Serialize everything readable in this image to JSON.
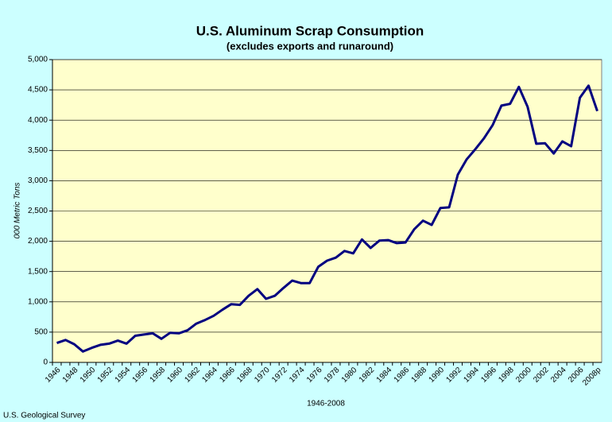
{
  "chart_data": {
    "type": "line",
    "title": "U.S. Aluminum Scrap Consumption",
    "subtitle": "(excludes exports and runaround)",
    "y_label": "000 Metric Tons",
    "x_label": "1946-2008",
    "source": "U.S. Geological Survey",
    "categories": [
      "1946",
      null,
      "1948",
      null,
      "1950",
      null,
      "1952",
      null,
      "1954",
      null,
      "1956",
      null,
      "1958",
      null,
      "1960",
      null,
      "1962",
      null,
      "1964",
      null,
      "1966",
      null,
      "1968",
      null,
      "1970",
      null,
      "1972",
      null,
      "1974",
      null,
      "1976",
      null,
      "1978",
      null,
      "1980",
      null,
      "1982",
      null,
      "1984",
      null,
      "1986",
      null,
      "1988",
      null,
      "1990",
      null,
      "1992",
      null,
      "1994",
      null,
      "1996",
      null,
      "1998",
      null,
      "2000",
      null,
      "2002",
      null,
      "2004",
      null,
      "2006",
      null,
      "2008p"
    ],
    "values": [
      320,
      370,
      300,
      180,
      240,
      290,
      310,
      360,
      310,
      440,
      460,
      480,
      390,
      490,
      480,
      530,
      640,
      700,
      770,
      870,
      960,
      950,
      1100,
      1210,
      1050,
      1100,
      1230,
      1350,
      1310,
      1310,
      1580,
      1680,
      1730,
      1840,
      1800,
      2030,
      1890,
      2010,
      2020,
      1970,
      1980,
      2200,
      2340,
      2270,
      2550,
      2560,
      3100,
      3350,
      3520,
      3700,
      3920,
      4240,
      4270,
      4550,
      4220,
      3610,
      3620,
      3450,
      3650,
      3570,
      4370,
      4570,
      4150
    ],
    "color": "#000080",
    "ylim": [
      0,
      5000
    ],
    "yticks": [
      0,
      500,
      {
        "value": 1000,
        "label": "1,000"
      },
      {
        "value": 1500,
        "label": "1,500"
      },
      {
        "value": 2000,
        "label": "2,000"
      },
      {
        "value": 2500,
        "label": "2,500"
      },
      {
        "value": 3000,
        "label": "3,000"
      },
      {
        "value": 3500,
        "label": "3,500"
      },
      {
        "value": 4000,
        "label": "4,000"
      },
      {
        "value": 4500,
        "label": "4,500"
      },
      {
        "value": 5000,
        "label": "5,000"
      }
    ],
    "grid": true
  }
}
